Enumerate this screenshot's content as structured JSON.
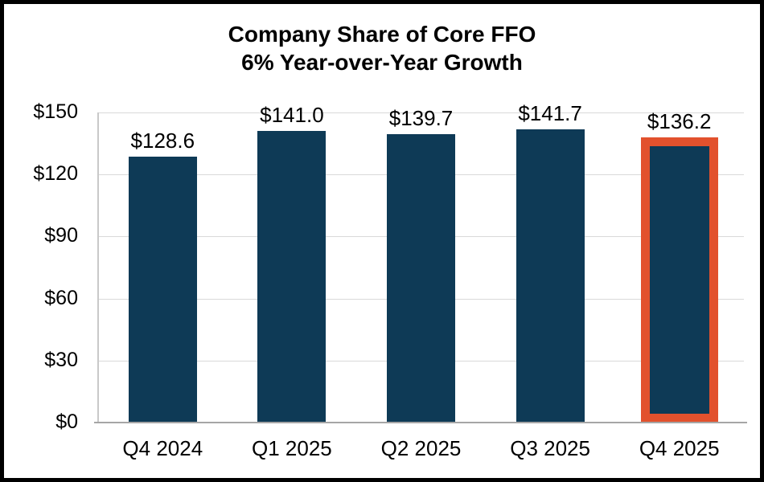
{
  "chart_data": {
    "type": "bar",
    "title": "Company Share of Core FFO",
    "subtitle": "6% Year-over-Year Growth",
    "categories": [
      "Q4 2024",
      "Q1 2025",
      "Q2 2025",
      "Q3 2025",
      "Q4 2025"
    ],
    "values": [
      128.6,
      141.0,
      139.7,
      141.7,
      136.2
    ],
    "data_labels": [
      "$128.6",
      "$141.0",
      "$139.7",
      "$141.7",
      "$136.2"
    ],
    "xlabel": "",
    "ylabel": "",
    "ylim": [
      0,
      150
    ],
    "y_tick_values": [
      0,
      30,
      60,
      90,
      120,
      150
    ],
    "y_tick_labels": [
      "$0",
      "$30",
      "$60",
      "$90",
      "$120",
      "$150"
    ],
    "grid": "horizontal",
    "legend": "none",
    "highlighted_index": 4,
    "colors": {
      "bar": "#0e3a56",
      "highlight_border": "#e2512d",
      "gridline": "#d9d9d9",
      "axis_line": "#a6a6a6",
      "text": "#000000",
      "frame_border": "#000000",
      "background": "#ffffff"
    }
  }
}
